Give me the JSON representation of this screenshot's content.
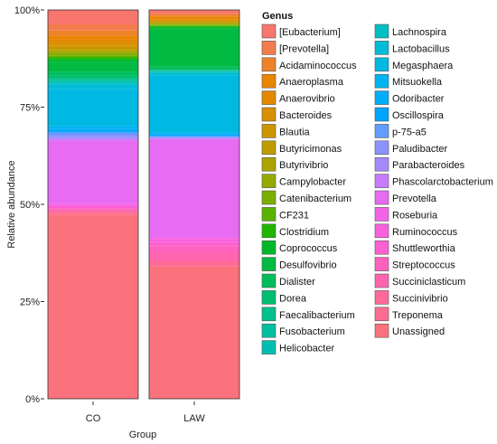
{
  "chart_data": {
    "type": "bar",
    "stacked": true,
    "xlabel": "Group",
    "ylabel": "Relative abundance",
    "ylim": [
      0,
      1
    ],
    "yticks": [
      {
        "value": 0,
        "label": "0%"
      },
      {
        "value": 0.25,
        "label": "25%"
      },
      {
        "value": 0.5,
        "label": "50%"
      },
      {
        "value": 0.75,
        "label": "75%"
      },
      {
        "value": 1,
        "label": "100%"
      }
    ],
    "categories": [
      "CO",
      "LAW"
    ],
    "legend_title": "Genus",
    "legend_position": "right",
    "series": [
      {
        "name": "[Eubacterium]",
        "color": "#F8766D",
        "values": [
          0.035,
          0.008
        ]
      },
      {
        "name": "[Prevotella]",
        "color": "#F47D4D",
        "values": [
          0.015,
          0.004
        ]
      },
      {
        "name": "Acidaminococcus",
        "color": "#EE8229",
        "values": [
          0.012,
          0.004
        ]
      },
      {
        "name": "Anaeroplasma",
        "color": "#EA8500",
        "values": [
          0.01,
          0.004
        ]
      },
      {
        "name": "Anaerovibrio",
        "color": "#E38900",
        "values": [
          0.008,
          0.004
        ]
      },
      {
        "name": "Bacteroides",
        "color": "#D89000",
        "values": [
          0.007,
          0.003
        ]
      },
      {
        "name": "Blautia",
        "color": "#CD9600",
        "values": [
          0.006,
          0.003
        ]
      },
      {
        "name": "Butyricimonas",
        "color": "#BE9C00",
        "values": [
          0.005,
          0.002
        ]
      },
      {
        "name": "Butyrivibrio",
        "color": "#ABA300",
        "values": [
          0.004,
          0.002
        ]
      },
      {
        "name": "Campylobacter",
        "color": "#94AA00",
        "values": [
          0.004,
          0.002
        ]
      },
      {
        "name": "Catenibacterium",
        "color": "#7CAE00",
        "values": [
          0.005,
          0.002
        ]
      },
      {
        "name": "CF231",
        "color": "#5BB300",
        "values": [
          0.004,
          0.002
        ]
      },
      {
        "name": "Clostridium",
        "color": "#1FB600",
        "values": [
          0.004,
          0.002
        ]
      },
      {
        "name": "Coprococcus",
        "color": "#00B929",
        "values": [
          0.006,
          0.003
        ]
      },
      {
        "name": "Desulfovibrio",
        "color": "#00BA42",
        "values": [
          0.024,
          0.094
        ]
      },
      {
        "name": "Dialister",
        "color": "#00BD5C",
        "values": [
          0.01,
          0.006
        ]
      },
      {
        "name": "Dorea",
        "color": "#00BE70",
        "values": [
          0.006,
          0.002
        ]
      },
      {
        "name": "Faecalibacterium",
        "color": "#00C08B",
        "values": [
          0.004,
          0.002
        ]
      },
      {
        "name": "Fusobacterium",
        "color": "#00C0A0",
        "values": [
          0.004,
          0.002
        ]
      },
      {
        "name": "Helicobacter",
        "color": "#00BFB2",
        "values": [
          0.004,
          0.002
        ]
      },
      {
        "name": "Lachnospira",
        "color": "#00BFC4",
        "values": [
          0.004,
          0.002
        ]
      },
      {
        "name": "Lactobacillus",
        "color": "#00BCD6",
        "values": [
          0.01,
          0.005
        ]
      },
      {
        "name": "Megasphaera",
        "color": "#00B9E3",
        "values": [
          0.09,
          0.14
        ]
      },
      {
        "name": "Mitsuokella",
        "color": "#00B4EF",
        "values": [
          0.006,
          0.004
        ]
      },
      {
        "name": "Odoribacter",
        "color": "#00ADFA",
        "values": [
          0.005,
          0.003
        ]
      },
      {
        "name": "Oscillospira",
        "color": "#00A5FF",
        "values": [
          0.004,
          0.002
        ]
      },
      {
        "name": "p-75-a5",
        "color": "#619CFF",
        "values": [
          0.006,
          0.002
        ]
      },
      {
        "name": "Paludibacter",
        "color": "#8B93FF",
        "values": [
          0.006,
          0.002
        ]
      },
      {
        "name": "Parabacteroides",
        "color": "#A58AFF",
        "values": [
          0.004,
          0.002
        ]
      },
      {
        "name": "Phascolarctobacterium",
        "color": "#C77CFF",
        "values": [
          0.004,
          0.002
        ]
      },
      {
        "name": "Prevotella",
        "color": "#E76BF3",
        "values": [
          0.152,
          0.24
        ]
      },
      {
        "name": "Roseburia",
        "color": "#F365E6",
        "values": [
          0.004,
          0.004
        ]
      },
      {
        "name": "Ruminococcus",
        "color": "#F962DD",
        "values": [
          0.004,
          0.008
        ]
      },
      {
        "name": "Shuttleworthia",
        "color": "#FD61D1",
        "values": [
          0.004,
          0.01
        ]
      },
      {
        "name": "Streptococcus",
        "color": "#FF62BC",
        "values": [
          0.004,
          0.016
        ]
      },
      {
        "name": "Succiniclasticum",
        "color": "#FF65AE",
        "values": [
          0.004,
          0.02
        ]
      },
      {
        "name": "Succinivibrio",
        "color": "#FF6A98",
        "values": [
          0.004,
          0.01
        ]
      },
      {
        "name": "Treponema",
        "color": "#FF6C91",
        "values": [
          0.003,
          0.004
        ]
      },
      {
        "name": "Unassigned",
        "color": "#FB727C",
        "values": [
          0.446,
          0.324
        ]
      }
    ]
  }
}
